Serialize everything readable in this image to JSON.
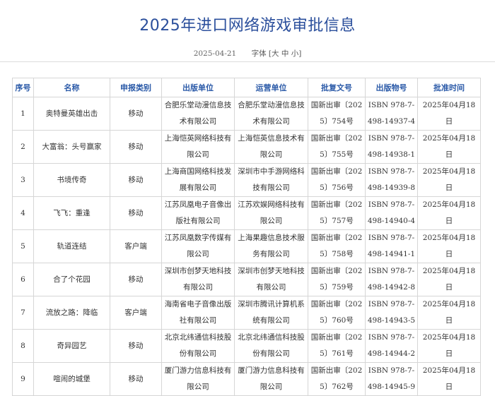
{
  "title": "2025年进口网络游戏审批信息",
  "meta": {
    "date": "2025-04-21",
    "font_label": "字体",
    "font_sizes": [
      "大",
      "中",
      "小"
    ]
  },
  "colors": {
    "accent": "#2b4f9c",
    "header_text": "#2b5aa8",
    "border": "#d6d6d6"
  },
  "table": {
    "headers": [
      "序号",
      "名称",
      "申报类别",
      "出版单位",
      "运营单位",
      "批复文号",
      "出版物号",
      "批准时间"
    ],
    "rows": [
      [
        "1",
        "奥特曼英雄出击",
        "移动",
        "合肥乐堂动漫信息技术有限公司",
        "合肥乐堂动漫信息技术有限公司",
        "国新出审〔2025〕754号",
        "ISBN 978-7-498-14937-4",
        "2025年04月18日"
      ],
      [
        "2",
        "大富翁：头号赢家",
        "移动",
        "上海恺英网络科技有限公司",
        "上海恺英信息技术有限公司",
        "国新出审〔2025〕755号",
        "ISBN 978-7-498-14938-1",
        "2025年04月18日"
      ],
      [
        "3",
        "书境传奇",
        "移动",
        "上海商国网络科技发展有限公司",
        "深圳市中手游网络科技有限公司",
        "国新出审〔2025〕756号",
        "ISBN 978-7-498-14939-8",
        "2025年04月18日"
      ],
      [
        "4",
        "飞飞：重逢",
        "移动",
        "江苏凤凰电子音像出版社有限公司",
        "江苏欢娱网络科技有限公司",
        "国新出审〔2025〕757号",
        "ISBN 978-7-498-14940-4",
        "2025年04月18日"
      ],
      [
        "5",
        "轨道连结",
        "客户端",
        "江苏凤凰数字传媒有限公司",
        "上海果趣信息技术服务有限公司",
        "国新出审〔2025〕758号",
        "ISBN 978-7-498-14941-1",
        "2025年04月18日"
      ],
      [
        "6",
        "合了个花园",
        "移动",
        "深圳市创梦天地科技有限公司",
        "深圳市创梦天地科技有限公司",
        "国新出审〔2025〕759号",
        "ISBN 978-7-498-14942-8",
        "2025年04月18日"
      ],
      [
        "7",
        "流放之路：降临",
        "客户端",
        "海南省电子音像出版社有限公司",
        "深圳市腾讯计算机系统有限公司",
        "国新出审〔2025〕760号",
        "ISBN 978-7-498-14943-5",
        "2025年04月18日"
      ],
      [
        "8",
        "奇异园艺",
        "移动",
        "北京北纬通信科技股份有限公司",
        "北京北纬通信科技股份有限公司",
        "国新出审〔2025〕761号",
        "ISBN 978-7-498-14944-2",
        "2025年04月18日"
      ],
      [
        "9",
        "喧闹的城堡",
        "移动",
        "厦门游力信息科技有限公司",
        "厦门游力信息科技有限公司",
        "国新出审〔2025〕762号",
        "ISBN 978-7-498-14945-9",
        "2025年04月18日"
      ]
    ]
  }
}
